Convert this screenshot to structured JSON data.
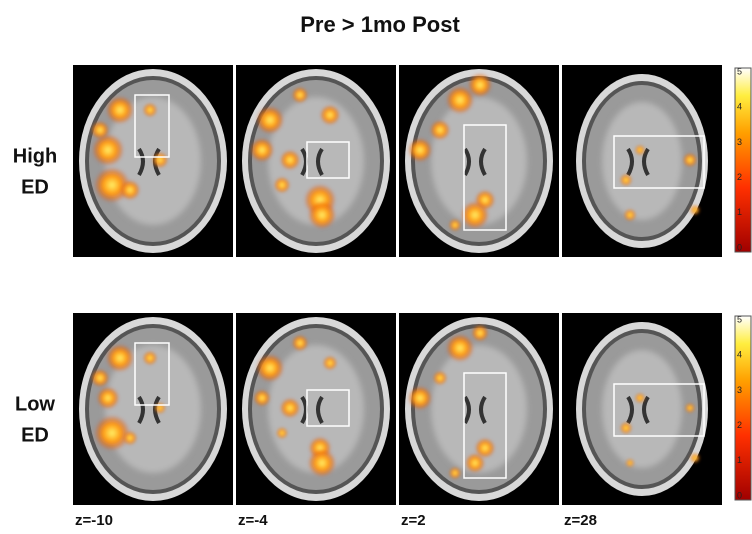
{
  "title": "Pre > 1mo Post",
  "rows": [
    {
      "label_lines": [
        "High",
        "ED"
      ]
    },
    {
      "label_lines": [
        "Low",
        "ED"
      ]
    }
  ],
  "columns": [
    "z=-10",
    "z=-4",
    "z=2",
    "z=28"
  ],
  "colorbar": {
    "ticks": [
      5,
      4,
      3,
      2,
      1,
      0
    ]
  }
}
